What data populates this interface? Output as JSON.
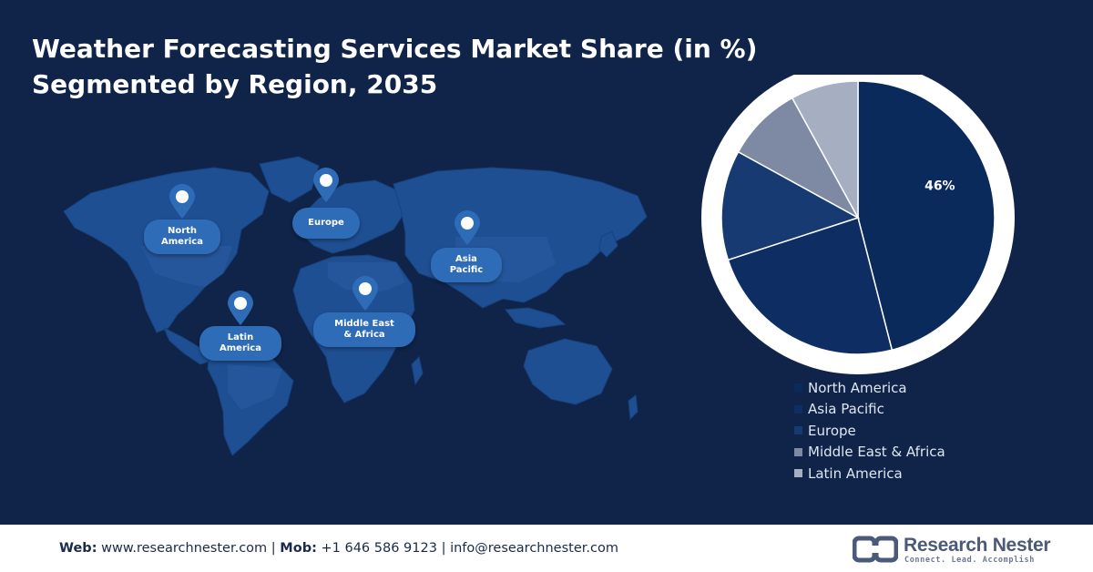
{
  "title_line1": "Weather Forecasting Services Market Share (in %)",
  "title_line2": "Segmented by Region, 2035",
  "map": {
    "regions": [
      {
        "key": "north-america",
        "label": "North\nAmerica"
      },
      {
        "key": "europe",
        "label": "Europe"
      },
      {
        "key": "asia-pacific",
        "label": "Asia\nPacific"
      },
      {
        "key": "middle-east-africa",
        "label": "Middle East\n& Africa"
      },
      {
        "key": "latin-america",
        "label": "Latin\nAmerica"
      }
    ]
  },
  "chart_data": {
    "type": "pie",
    "title": "Weather Forecasting Services Market Share (in %) Segmented by Region, 2035",
    "start_angle_deg": 0,
    "direction": "clockwise",
    "legend_position": "bottom-right",
    "slices": [
      {
        "label": "North America",
        "value": 46,
        "color": "#0b2a5c",
        "data_label": "46%"
      },
      {
        "label": "Asia Pacific",
        "value": 24,
        "color": "#0e2d62",
        "data_label": ""
      },
      {
        "label": "Europe",
        "value": 13,
        "color": "#163a71",
        "data_label": ""
      },
      {
        "label": "Middle East & Africa",
        "value": 9,
        "color": "#7e8aa4",
        "data_label": ""
      },
      {
        "label": "Latin America",
        "value": 8,
        "color": "#a6aec1",
        "data_label": ""
      }
    ]
  },
  "footer": {
    "web_label": "Web:",
    "web_value": "www.researchnester.com",
    "sep1": "|",
    "mob_label": "Mob:",
    "mob_value": "+1 646 586 9123",
    "sep2": "|",
    "email": "info@researchnester.com"
  },
  "logo": {
    "name": "Research Nester",
    "tagline": "Connect. Lead. Accomplish",
    "icon": "research-nester-logo-icon"
  },
  "colors": {
    "background": "#102449",
    "map_land": "#1f4f93",
    "pin": "#2f6cb7",
    "footer_bg": "#ffffff"
  }
}
